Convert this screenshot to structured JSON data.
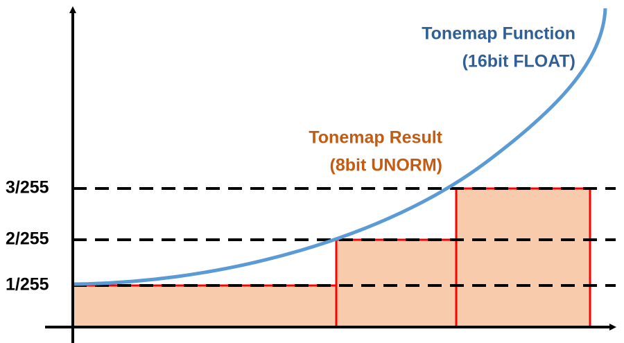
{
  "function_label": {
    "title": "Tonemap Function",
    "subtitle": "(16bit FLOAT)"
  },
  "result_label": {
    "title": "Tonemap Result",
    "subtitle": "(8bit UNORM)"
  },
  "y_levels": [
    "1/255",
    "2/255",
    "3/255"
  ]
}
